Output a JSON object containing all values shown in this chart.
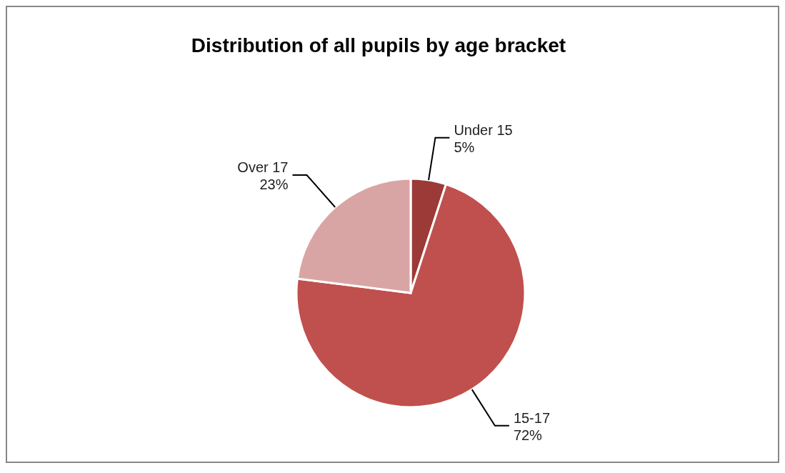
{
  "chart_data": {
    "type": "pie",
    "title": "Distribution of all pupils by age bracket",
    "categories": [
      "Under 15",
      "15-17",
      "Over 17"
    ],
    "values": [
      5,
      72,
      23
    ],
    "colors": [
      "#9b3a37",
      "#c0504d",
      "#d9a5a4"
    ],
    "value_labels": [
      "5%",
      "72%",
      "23%"
    ]
  }
}
